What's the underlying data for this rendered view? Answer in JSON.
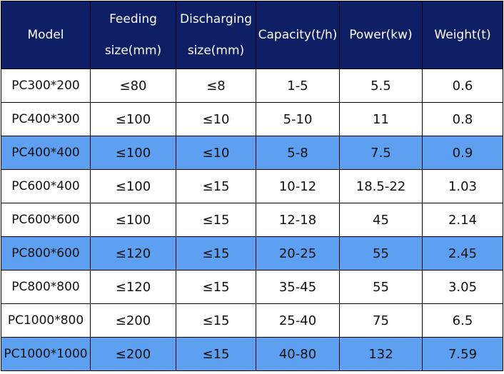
{
  "table": {
    "headers": [
      {
        "line1": "Model",
        "line2": ""
      },
      {
        "line1": "Feeding",
        "line2": "size(mm)"
      },
      {
        "line1": "Discharging",
        "line2": "size(mm)"
      },
      {
        "line1": "Capacity(t/h)",
        "line2": ""
      },
      {
        "line1": "Power(kw)",
        "line2": ""
      },
      {
        "line1": "Weight(t)",
        "line2": ""
      }
    ],
    "colors": {
      "header_bg": "#0f1f66",
      "highlight_row_bg": "#5d9ff0",
      "row_bg": "#ffffff"
    },
    "rows": [
      {
        "model": "PC300*200",
        "feeding": "≤80",
        "discharging": "≤8",
        "capacity": "1-5",
        "power": "5.5",
        "weight": "0.6",
        "highlight": false
      },
      {
        "model": "PC400*300",
        "feeding": "≤100",
        "discharging": "≤10",
        "capacity": "5-10",
        "power": "11",
        "weight": "0.8",
        "highlight": false
      },
      {
        "model": "PC400*400",
        "feeding": "≤100",
        "discharging": "≤10",
        "capacity": "5-8",
        "power": "7.5",
        "weight": "0.9",
        "highlight": true
      },
      {
        "model": "PC600*400",
        "feeding": "≤100",
        "discharging": "≤15",
        "capacity": "10-12",
        "power": "18.5-22",
        "weight": "1.03",
        "highlight": false
      },
      {
        "model": "PC600*600",
        "feeding": "≤100",
        "discharging": "≤15",
        "capacity": "12-18",
        "power": "45",
        "weight": "2.14",
        "highlight": false
      },
      {
        "model": "PC800*600",
        "feeding": "≤120",
        "discharging": "≤15",
        "capacity": "20-25",
        "power": "55",
        "weight": "2.45",
        "highlight": true
      },
      {
        "model": "PC800*800",
        "feeding": "≤120",
        "discharging": "≤15",
        "capacity": "35-45",
        "power": "55",
        "weight": "3.05",
        "highlight": false
      },
      {
        "model": "PC1000*800",
        "feeding": "≤200",
        "discharging": "≤15",
        "capacity": "25-40",
        "power": "75",
        "weight": "6.5",
        "highlight": false
      },
      {
        "model": "PC1000*1000",
        "feeding": "≤200",
        "discharging": "≤15",
        "capacity": "40-80",
        "power": "132",
        "weight": "7.59",
        "highlight": true
      }
    ]
  }
}
